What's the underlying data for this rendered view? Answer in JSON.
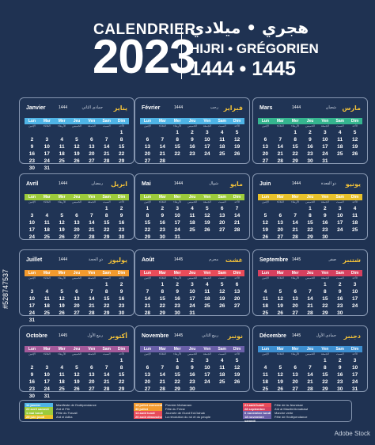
{
  "header": {
    "calendrier": "CALENDRIER",
    "year": "2023",
    "arabic": "هجري • ميلادي",
    "subtitle": "HIJRI • GRÉGORIEN",
    "hijri_years": "1444 • 1445"
  },
  "day_names": [
    "Lun",
    "Mar",
    "Mer",
    "Jeu",
    "Ven",
    "Sam",
    "Dim"
  ],
  "day_names_ar": [
    "الإثنين",
    "الثلاثاء",
    "الأربعاء",
    "الخميس",
    "الجمعة",
    "السبت",
    "الأحد"
  ],
  "months": [
    {
      "name": "Janvier",
      "hy": "1444",
      "hn": "جمادى الثاني",
      "ar": "يناير",
      "color": "#4fb4e6",
      "offset": 6,
      "days": 31
    },
    {
      "name": "Février",
      "hy": "1444",
      "hn": "رجب",
      "ar": "فبراير",
      "color": "#4fb4e6",
      "offset": 2,
      "days": 28
    },
    {
      "name": "Mars",
      "hy": "1444",
      "hn": "شعبان",
      "ar": "مارس",
      "color": "#35b58f",
      "offset": 2,
      "days": 31
    },
    {
      "name": "Avril",
      "hy": "1444",
      "hn": "رمضان",
      "ar": "ابريل",
      "color": "#9ccb3b",
      "offset": 5,
      "days": 30
    },
    {
      "name": "Mai",
      "hy": "1444",
      "hn": "شوال",
      "ar": "مايو",
      "color": "#9ccb3b",
      "offset": 0,
      "days": 31
    },
    {
      "name": "Juin",
      "hy": "1444",
      "hn": "ذو القعدة",
      "ar": "يونيو",
      "color": "#e8c12a",
      "offset": 3,
      "days": 30
    },
    {
      "name": "Juillet",
      "hy": "1444",
      "hn": "ذو الحجة",
      "ar": "يوليوز",
      "color": "#f29a2e",
      "offset": 5,
      "days": 31
    },
    {
      "name": "Août",
      "hy": "1445",
      "hn": "محرم",
      "ar": "غشت",
      "color": "#e84c5a",
      "offset": 1,
      "days": 31
    },
    {
      "name": "Septembre",
      "hy": "1445",
      "hn": "صفر",
      "ar": "شتنبر",
      "color": "#d6405f",
      "offset": 4,
      "days": 30
    },
    {
      "name": "Octobre",
      "hy": "1445",
      "hn": "ربيع الأول",
      "ar": "أكتوبر",
      "color": "#a55a9a",
      "offset": 6,
      "days": 31
    },
    {
      "name": "Novembre",
      "hy": "1445",
      "hn": "ربيع الثاني",
      "ar": "نونبر",
      "color": "#6a5fa8",
      "offset": 2,
      "days": 30
    },
    {
      "name": "Décembre",
      "hy": "1445",
      "hn": "جمادى الأول",
      "ar": "دجنبر",
      "color": "#3d8fd1",
      "offset": 4,
      "days": 31
    }
  ],
  "legend": [
    [
      {
        "d": "11 janvier mercredi",
        "t": "Manifeste de l'indépendance",
        "c": "#4fb4e6"
      },
      {
        "d": "22 avril samedi",
        "t": "Aïd el Fitr",
        "c": "#9ccb3b"
      },
      {
        "d": "1 mai lundi",
        "t": "Fête du Travail",
        "c": "#9ccb3b"
      },
      {
        "d": "29 juin jeudi",
        "t": "Aïd el Adha",
        "c": "#e8c12a"
      }
    ],
    [
      {
        "d": "19 juillet mercredi",
        "t": "Premier Moharram",
        "c": "#f29a2e"
      },
      {
        "d": "30 juillet dimanche",
        "t": "Fête du Trône",
        "c": "#f29a2e"
      },
      {
        "d": "14 août lundi",
        "t": "Journée de Oued Ed-Dahab",
        "c": "#e84c5a"
      },
      {
        "d": "20 août dimanche",
        "t": "La révolution du roi et du peuple",
        "c": "#e84c5a"
      }
    ],
    [
      {
        "d": "21 août lundi",
        "t": "Fête de la Jeunesse",
        "c": "#e84c5a"
      },
      {
        "d": "28 septembre jeudi",
        "t": "Aïd al Mawlid Annabawi",
        "c": "#d6405f"
      },
      {
        "d": "6 novembre lundi",
        "t": "Marche verte",
        "c": "#6a5fa8"
      },
      {
        "d": "18 novembre samedi",
        "t": "Fête de l'indépendance",
        "c": "#6a5fa8"
      }
    ]
  ],
  "watermark": "Adobe Stock",
  "stock_id": "#528747537"
}
